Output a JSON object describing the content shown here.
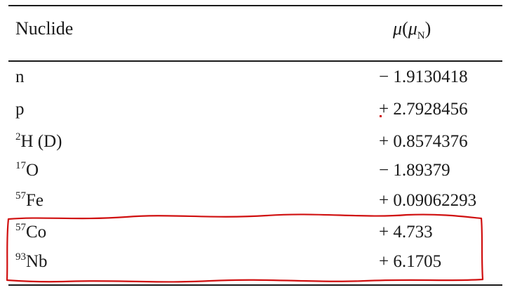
{
  "table": {
    "header": {
      "nuclide": "Nuclide",
      "moment_symbol": "μ",
      "moment_open": "(",
      "moment_unit_symbol": "μ",
      "moment_unit_sub": "N",
      "moment_close": ")"
    },
    "rows": [
      {
        "sup": "",
        "base": "n",
        "moment": "− 1.9130418"
      },
      {
        "sup": "",
        "base": "p",
        "moment": "+ 2.7928456"
      },
      {
        "sup": "2",
        "base": "H (D)",
        "moment": "+ 0.8574376"
      },
      {
        "sup": "17",
        "base": "O",
        "moment": "− 1.89379"
      },
      {
        "sup": "57",
        "base": "Fe",
        "moment": "+ 0.09062293"
      },
      {
        "sup": "57",
        "base": "Co",
        "moment": "+ 4.733"
      },
      {
        "sup": "93",
        "base": "Nb",
        "moment": "+ 6.1705"
      }
    ]
  },
  "annotation": {
    "color": "#d01010",
    "highlighted_rows": [
      "57Co",
      "93Nb"
    ]
  }
}
